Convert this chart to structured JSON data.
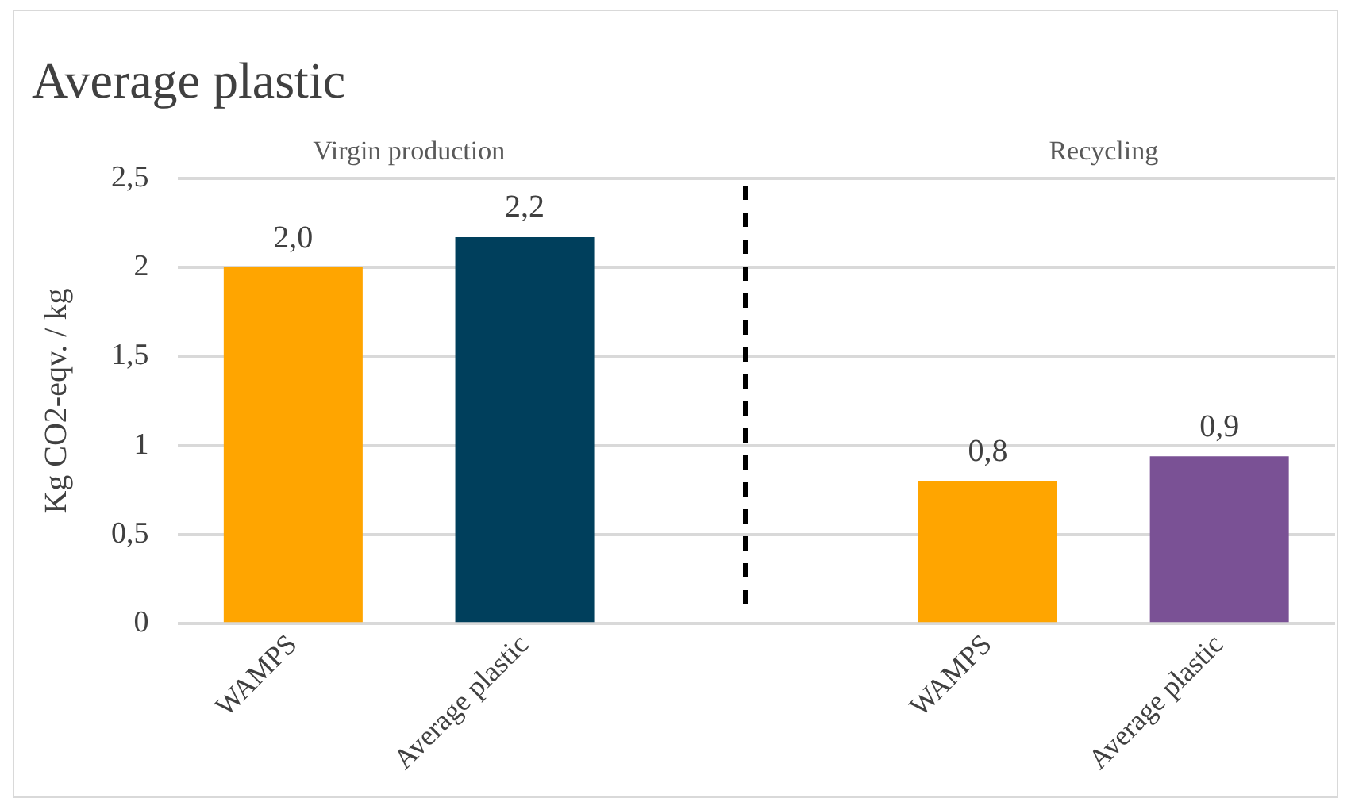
{
  "chart_data": {
    "type": "bar",
    "title": "Average plastic",
    "ylabel": "Kg CO2-eqv. / kg",
    "categories": [
      "WAMPS",
      "Average plastic",
      null,
      "WAMPS",
      "Average plastic"
    ],
    "values": [
      2.0,
      2.17,
      null,
      0.8,
      0.94
    ],
    "colors": [
      "#ffa500",
      "#003f5c",
      null,
      "#ffa500",
      "#7a5195"
    ],
    "value_labels": [
      "2,0",
      "2,2",
      null,
      "0,8",
      "0,9"
    ],
    "annotations": [
      "Virgin production",
      "Recycling"
    ],
    "ylim": [
      0,
      2.5
    ],
    "yticks": [
      0,
      {
        "value": 0.5,
        "label": "0,5"
      },
      1,
      {
        "value": 1.5,
        "label": "1,5"
      },
      2,
      {
        "value": 2.5,
        "label": "2,5"
      }
    ],
    "grid": "y",
    "legend": false
  }
}
